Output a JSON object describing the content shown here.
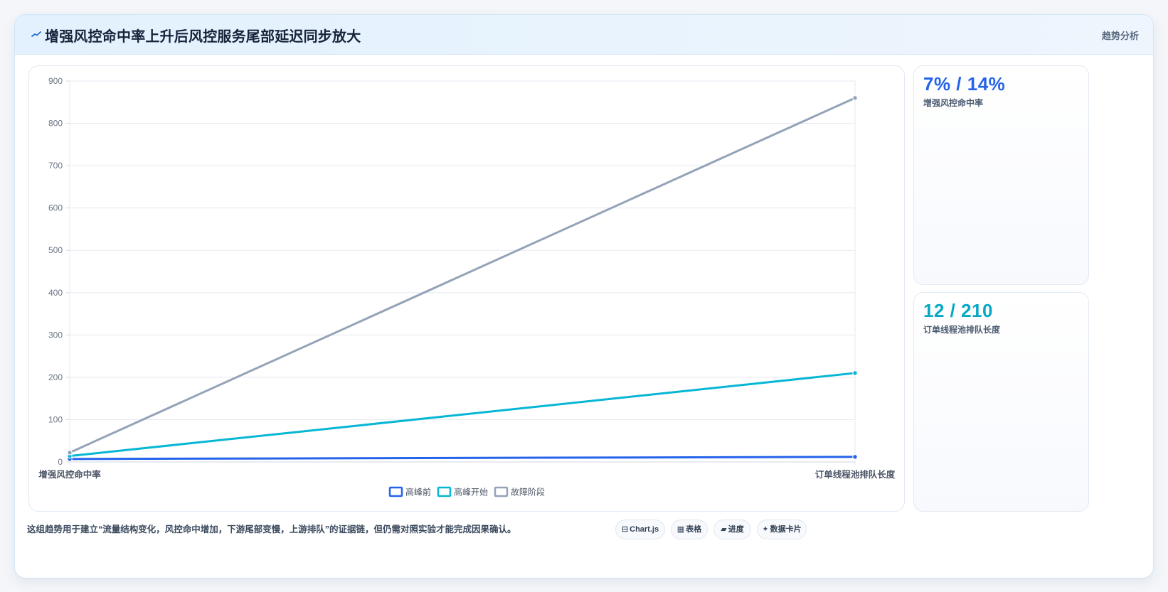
{
  "header": {
    "title": "增强风控命中率上升后风控服务尾部延迟同步放大",
    "tag": "趋势分析",
    "icon": "trend-line-icon"
  },
  "stats": [
    {
      "value": "7% / 14%",
      "label": "增强风控命中率",
      "color": "#2563eb"
    },
    {
      "value": "12 / 210",
      "label": "订单线程池排队长度",
      "color": "#06a8c4"
    }
  ],
  "footnote": "这组趋势用于建立“流量结构变化，风控命中增加，下游尾部变慢，上游排队”的证据链，但仍需对照实验才能完成因果确认。",
  "chips": [
    {
      "icon": "chart-icon",
      "glyph": "⊟",
      "label": "Chart.js"
    },
    {
      "icon": "table-icon",
      "glyph": "▦",
      "label": "表格"
    },
    {
      "icon": "progress-icon",
      "glyph": "▰",
      "label": "进度"
    },
    {
      "icon": "sparkle-icon",
      "glyph": "✦",
      "label": "数据卡片"
    }
  ],
  "chart_data": {
    "type": "line",
    "categories": [
      "增强风控命中率",
      "订单线程池排队长度"
    ],
    "series": [
      {
        "name": "高峰前",
        "values": [
          7,
          12
        ],
        "color": "#2563eb"
      },
      {
        "name": "高峰开始",
        "values": [
          14,
          210
        ],
        "color": "#06b6d4"
      },
      {
        "name": "故障阶段",
        "values": [
          22,
          860
        ],
        "color": "#94a3b8"
      }
    ],
    "ylim": [
      0,
      900
    ],
    "yticks": [
      0,
      100,
      200,
      300,
      400,
      500,
      600,
      700,
      800,
      900
    ],
    "grid": true,
    "legend": "bottom"
  }
}
